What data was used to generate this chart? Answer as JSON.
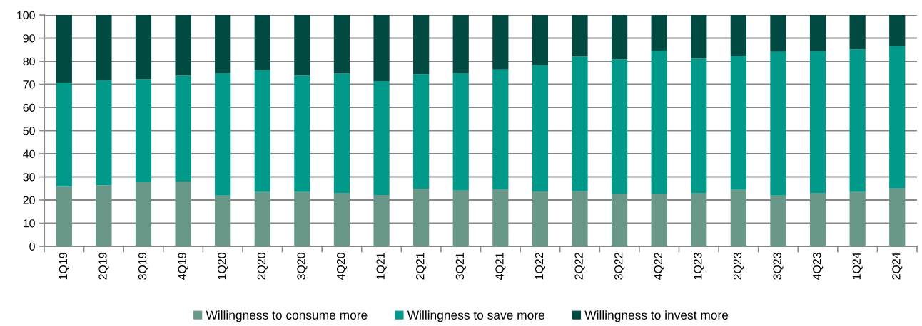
{
  "chart_data": {
    "type": "bar",
    "stacked": true,
    "categories": [
      "1Q19",
      "2Q19",
      "3Q19",
      "4Q19",
      "1Q20",
      "2Q20",
      "3Q20",
      "4Q20",
      "1Q21",
      "2Q21",
      "3Q21",
      "4Q21",
      "1Q22",
      "2Q22",
      "3Q22",
      "4Q22",
      "1Q23",
      "2Q23",
      "3Q23",
      "4Q23",
      "1Q24",
      "2Q24"
    ],
    "series": [
      {
        "name": "Willingness to consume more",
        "color": "#699889",
        "values": [
          25.8,
          26.4,
          27.7,
          28.0,
          21.9,
          23.5,
          23.5,
          23.1,
          22.2,
          24.9,
          24.1,
          24.6,
          23.7,
          23.8,
          22.8,
          22.8,
          23.1,
          24.4,
          21.9,
          23.1,
          23.5,
          25.0
        ]
      },
      {
        "name": "Willingness to save more",
        "color": "#00998a",
        "values": [
          45.0,
          45.4,
          44.5,
          45.7,
          53.0,
          52.6,
          50.3,
          51.5,
          49.2,
          49.5,
          50.8,
          51.8,
          54.6,
          58.2,
          58.1,
          61.8,
          58.1,
          58.0,
          62.2,
          61.2,
          61.7,
          61.7
        ]
      },
      {
        "name": "Willingness to invest more",
        "color": "#004a42",
        "values": [
          29.2,
          28.2,
          27.8,
          26.3,
          25.1,
          23.9,
          26.2,
          25.4,
          28.6,
          25.6,
          25.1,
          23.6,
          21.7,
          18.0,
          19.1,
          15.4,
          18.8,
          17.6,
          15.9,
          15.7,
          14.8,
          13.3
        ]
      }
    ],
    "ylim": [
      0,
      100
    ],
    "yticks": [
      0,
      10,
      20,
      30,
      40,
      50,
      60,
      70,
      80,
      90,
      100
    ],
    "grid": "y",
    "legend": "bottom"
  }
}
